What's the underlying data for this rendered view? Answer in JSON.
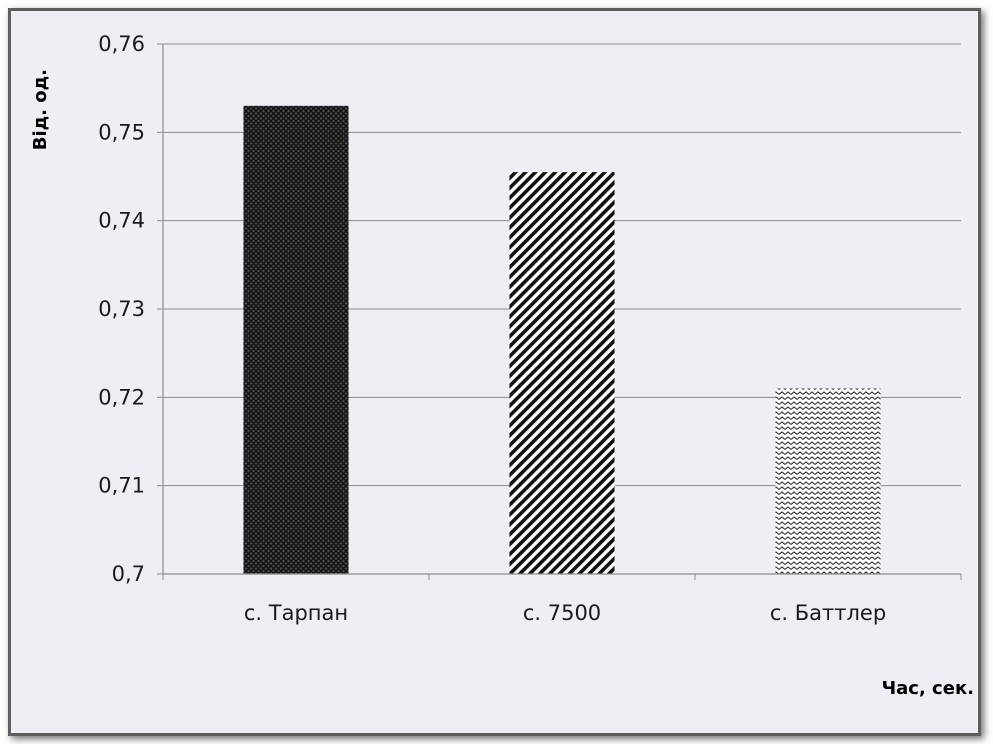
{
  "chart_data": {
    "type": "bar",
    "categories": [
      "с. Тарпан",
      "с. 7500",
      "с. Баттлер"
    ],
    "values": [
      0.753,
      0.7455,
      0.721
    ],
    "xlabel": "Час, сек.",
    "ylabel": "Від. од.",
    "ylim": [
      0.7,
      0.76
    ],
    "yticks": [
      "0,7",
      "0,71",
      "0,72",
      "0,73",
      "0,74",
      "0,75",
      "0,76"
    ],
    "grid": true,
    "fill_patterns": [
      "dense-crosshatch",
      "diagonal-stripes",
      "zigzag-waves"
    ],
    "colors": {
      "bar_ink": "#1a1a1a",
      "gridline": "#8c8c8c",
      "background": "#eeeff5",
      "frame": "#5e5e5e"
    }
  }
}
